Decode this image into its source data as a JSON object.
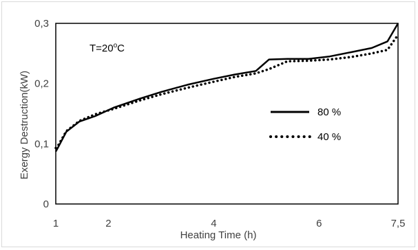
{
  "chart_data": {
    "type": "line",
    "title": "",
    "xlabel": "Heating Time (h)",
    "ylabel": "Exergy Destruction(kW)",
    "annotation": "T=20",
    "annotation_sup": "o",
    "annotation_unit": "C",
    "xlim": [
      1,
      7.5
    ],
    "ylim": [
      0,
      0.3
    ],
    "x_ticks": [
      {
        "value": 1,
        "label": "1"
      },
      {
        "value": 2,
        "label": "2"
      },
      {
        "value": 4,
        "label": "4"
      },
      {
        "value": 6,
        "label": "6"
      },
      {
        "value": 7.5,
        "label": "7,5"
      }
    ],
    "y_ticks": [
      {
        "value": 0,
        "label": "0"
      },
      {
        "value": 0.1,
        "label": "0,1"
      },
      {
        "value": 0.2,
        "label": "0,2"
      },
      {
        "value": 0.3,
        "label": "0,3"
      }
    ],
    "legend_position": "right",
    "series": [
      {
        "name": "80 %",
        "style": "solid",
        "color": "#000000",
        "x": [
          1.0,
          1.05,
          1.2,
          1.45,
          1.75,
          2.1,
          2.6,
          3.0,
          3.5,
          4.0,
          4.4,
          4.8,
          5.05,
          5.4,
          5.8,
          6.2,
          6.6,
          7.0,
          7.3,
          7.5
        ],
        "y": [
          0.087,
          0.095,
          0.12,
          0.137,
          0.146,
          0.16,
          0.175,
          0.186,
          0.198,
          0.208,
          0.215,
          0.221,
          0.24,
          0.241,
          0.241,
          0.245,
          0.252,
          0.259,
          0.27,
          0.3
        ]
      },
      {
        "name": "40 %",
        "style": "dotted",
        "color": "#000000",
        "x": [
          1.0,
          1.05,
          1.2,
          1.45,
          1.75,
          2.1,
          2.6,
          3.0,
          3.5,
          4.0,
          4.4,
          4.8,
          5.05,
          5.4,
          5.8,
          6.2,
          6.6,
          7.0,
          7.3,
          7.5
        ],
        "y": [
          0.093,
          0.098,
          0.121,
          0.138,
          0.149,
          0.158,
          0.172,
          0.182,
          0.193,
          0.203,
          0.211,
          0.217,
          0.224,
          0.237,
          0.238,
          0.24,
          0.244,
          0.25,
          0.256,
          0.281
        ]
      }
    ]
  }
}
